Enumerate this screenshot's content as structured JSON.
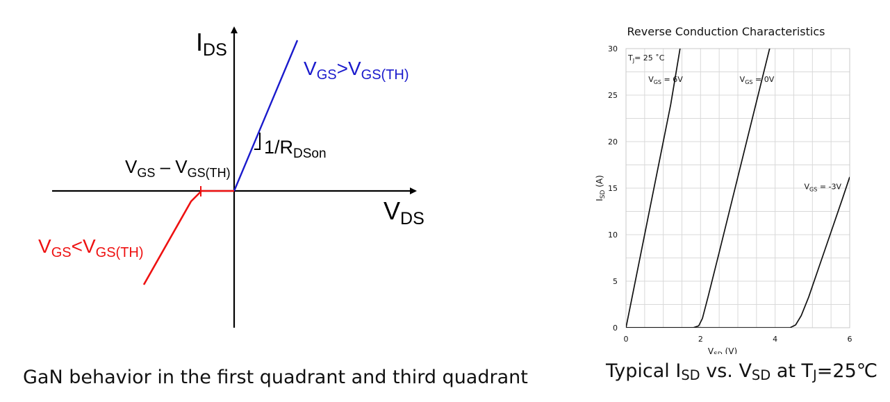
{
  "diagram": {
    "y_axis_label": {
      "main": "I",
      "sub": "DS"
    },
    "x_axis_label": {
      "main": "V",
      "sub": "DS"
    },
    "on_label": {
      "a": "V",
      "a_sub": "GS",
      "op": ">",
      "b": "V",
      "b_sub": "GS(TH)"
    },
    "off_label": {
      "a": "V",
      "a_sub": "GS",
      "op": "<",
      "b": "V",
      "b_sub": "GS(TH)"
    },
    "threshold_label": {
      "a": "V",
      "a_sub": "GS",
      "op": " – ",
      "b": "V",
      "b_sub": "GS(TH)"
    },
    "slope_label": {
      "main": "1/R",
      "sub": "DSon"
    },
    "colors": {
      "on": "#1a1acc",
      "off": "#ee1111",
      "axis": "#000000"
    }
  },
  "captions": {
    "left": "GaN behavior in the first quadrant and third quadrant",
    "right": {
      "p1": "Typical I",
      "s1": "SD",
      "p2": " vs. V",
      "s2": "SD",
      "p3": " at T",
      "s3": "J",
      "p4": "=25℃"
    }
  },
  "chart_data": {
    "type": "line",
    "title": "Reverse Conduction Characteristics",
    "xlabel": {
      "main": "V",
      "sub": "SD",
      "unit": " (V)"
    },
    "ylabel": {
      "main": "I",
      "sub": "SD",
      "unit": " (A)"
    },
    "xlim": [
      0,
      6
    ],
    "ylim": [
      0,
      30
    ],
    "xticks": [
      0,
      2,
      4,
      6
    ],
    "yticks": [
      0,
      5,
      10,
      15,
      20,
      25,
      30
    ],
    "grid": true,
    "annotation": {
      "main": "T",
      "sub": "J",
      "rest": "= 25 ˚C"
    },
    "series": [
      {
        "name": "VGS = 6V",
        "label_main": "V",
        "label_sub": "GS",
        "label_rest": " = 6V",
        "x": [
          0,
          0.3,
          0.6,
          0.9,
          1.2,
          1.45
        ],
        "y": [
          0,
          6,
          12,
          18,
          24,
          30
        ]
      },
      {
        "name": "VGS = 0V",
        "label_main": "V",
        "label_sub": "GS",
        "label_rest": " = 0V",
        "x": [
          0,
          1.8,
          1.95,
          2.05,
          2.2,
          2.5,
          3.0,
          3.5,
          4.0,
          4.4
        ],
        "y": [
          0,
          0,
          0.2,
          1,
          3.3,
          8.1,
          16.2,
          24.3,
          32.4,
          38.9
        ]
      },
      {
        "name": "VGS = -3V",
        "label_main": "V",
        "label_sub": "GS",
        "label_rest": " = -3V",
        "x": [
          0,
          4.4,
          4.55,
          4.7,
          4.9,
          5.2,
          5.5,
          5.8,
          6.0
        ],
        "y": [
          0,
          0,
          0.3,
          1.3,
          3.3,
          6.8,
          10.3,
          13.8,
          16.2
        ]
      }
    ]
  }
}
